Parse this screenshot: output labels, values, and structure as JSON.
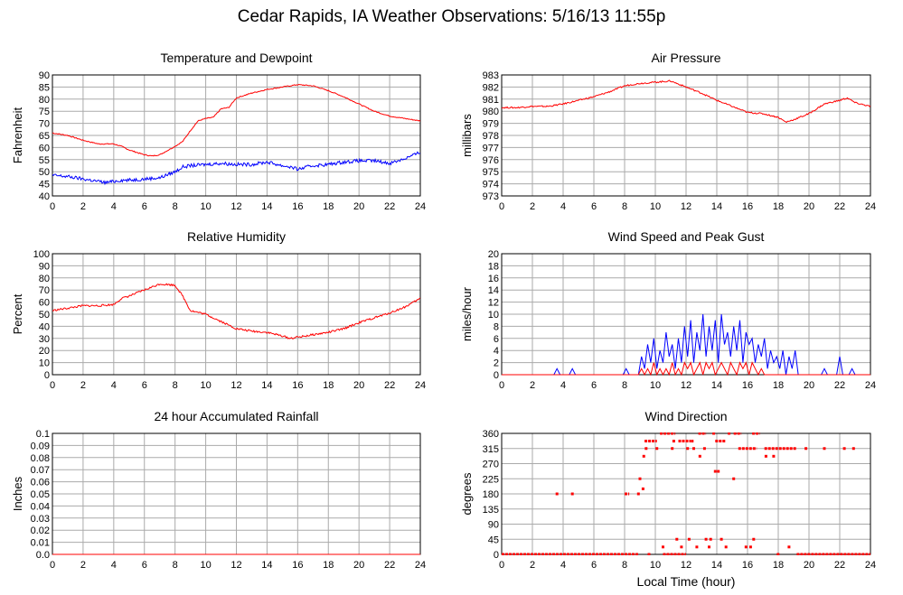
{
  "page": {
    "title": "Cedar Rapids, IA Weather Observations: 5/16/13 11:55p"
  },
  "colors": {
    "red": "#ff0000",
    "blue": "#0000ff",
    "grid": "#aaaaaa",
    "axis": "#000000"
  },
  "chart_data": [
    {
      "id": "temperature-dewpoint",
      "type": "line",
      "title": "Temperature and Dewpoint",
      "xlabel": "",
      "ylabel": "Fahrenheit",
      "xlim": [
        0,
        24
      ],
      "ylim": [
        40,
        90
      ],
      "xticks": [
        0,
        2,
        4,
        6,
        8,
        10,
        12,
        14,
        16,
        18,
        20,
        22,
        24
      ],
      "yticks": [
        40,
        45,
        50,
        55,
        60,
        65,
        70,
        75,
        80,
        85,
        90
      ],
      "grid": true,
      "legend": "none",
      "series": [
        {
          "color": "#ff0000",
          "jitter": 0.2,
          "x": [
            0,
            1,
            2,
            3,
            3.5,
            4,
            4.5,
            5,
            6,
            6.5,
            7,
            8,
            8.5,
            9,
            9.5,
            10,
            10.5,
            11,
            11.5,
            12,
            12.5,
            13,
            14,
            15,
            16,
            17,
            18,
            19,
            20,
            21,
            22,
            23,
            24
          ],
          "y": [
            66,
            65,
            63,
            61.5,
            61.5,
            61.5,
            60.5,
            59,
            57,
            56.5,
            57,
            60.5,
            62.5,
            67,
            71,
            72,
            72.5,
            76,
            76.5,
            80.5,
            81.5,
            82.5,
            84,
            85,
            86,
            85.5,
            83.5,
            81,
            78,
            75,
            73,
            72,
            71
          ]
        },
        {
          "color": "#0000ff",
          "jitter": 0.7,
          "x": [
            0,
            1,
            2,
            3,
            3.5,
            4,
            4.5,
            5,
            6,
            7,
            8,
            8.5,
            9,
            10,
            11,
            12,
            13,
            14,
            15,
            15.5,
            16,
            17,
            18,
            19,
            20,
            21,
            22,
            23,
            24
          ],
          "y": [
            48.5,
            48,
            47,
            46,
            45.5,
            46,
            46.5,
            46.5,
            47,
            47.5,
            50,
            52,
            52.5,
            53,
            53.5,
            53,
            53,
            54,
            52.5,
            52,
            51,
            52.5,
            53,
            54,
            54.5,
            54.5,
            53.5,
            55.5,
            58
          ]
        }
      ]
    },
    {
      "id": "air-pressure",
      "type": "line",
      "title": "Air Pressure",
      "xlabel": "",
      "ylabel": "millibars",
      "xlim": [
        0,
        24
      ],
      "ylim": [
        973,
        983
      ],
      "xticks": [
        0,
        2,
        4,
        6,
        8,
        10,
        12,
        14,
        16,
        18,
        20,
        22,
        24
      ],
      "yticks": [
        973,
        974,
        975,
        976,
        977,
        978,
        979,
        980,
        981,
        982,
        983
      ],
      "grid": true,
      "legend": "none",
      "series": [
        {
          "color": "#ff0000",
          "jitter": 0.06,
          "x": [
            0,
            1,
            2,
            3,
            4,
            5,
            6,
            7,
            8,
            9,
            10,
            11,
            12,
            13,
            14,
            15,
            16,
            17,
            18,
            18.5,
            19,
            20,
            21,
            22,
            22.5,
            23,
            24
          ],
          "y": [
            980.3,
            980.3,
            980.4,
            980.4,
            980.6,
            980.9,
            981.2,
            981.6,
            982.1,
            982.3,
            982.4,
            982.5,
            982.0,
            981.5,
            980.9,
            980.4,
            979.9,
            979.8,
            979.5,
            979.1,
            979.3,
            979.8,
            980.6,
            980.9,
            981.1,
            980.7,
            980.4
          ]
        }
      ]
    },
    {
      "id": "relative-humidity",
      "type": "line",
      "title": "Relative Humidity",
      "xlabel": "",
      "ylabel": "Percent",
      "xlim": [
        0,
        24
      ],
      "ylim": [
        0,
        100
      ],
      "xticks": [
        0,
        2,
        4,
        6,
        8,
        10,
        12,
        14,
        16,
        18,
        20,
        22,
        24
      ],
      "yticks": [
        0,
        10,
        20,
        30,
        40,
        50,
        60,
        70,
        80,
        90,
        100
      ],
      "grid": true,
      "legend": "none",
      "series": [
        {
          "color": "#ff0000",
          "jitter": 0.8,
          "x": [
            0,
            1,
            2,
            3,
            4,
            4.5,
            5,
            6,
            7,
            8,
            8.5,
            9,
            10,
            11,
            12,
            13,
            14,
            15,
            15.5,
            16,
            17,
            18,
            19,
            20,
            21,
            22,
            23,
            24
          ],
          "y": [
            53,
            55,
            57,
            57,
            58,
            63,
            65,
            70,
            75,
            74,
            65,
            53,
            50,
            44,
            38,
            36,
            35,
            32,
            30,
            31,
            33,
            35,
            38,
            43,
            47,
            51,
            56,
            63
          ]
        }
      ]
    },
    {
      "id": "wind-speed-gust",
      "type": "line",
      "title": "Wind Speed and Peak Gust",
      "xlabel": "",
      "ylabel": "miles/hour",
      "xlim": [
        0,
        24
      ],
      "ylim": [
        0,
        20
      ],
      "xticks": [
        0,
        2,
        4,
        6,
        8,
        10,
        12,
        14,
        16,
        18,
        20,
        22,
        24
      ],
      "yticks": [
        0,
        2,
        4,
        6,
        8,
        10,
        12,
        14,
        16,
        18,
        20
      ],
      "grid": true,
      "legend": "none",
      "series": [
        {
          "color": "#0000ff",
          "jitter": 0,
          "x": [
            0,
            3.4,
            3.6,
            3.8,
            4.4,
            4.6,
            4.8,
            7.9,
            8.1,
            8.3,
            8.9,
            9.1,
            9.3,
            9.5,
            9.7,
            9.9,
            10.1,
            10.3,
            10.5,
            10.7,
            10.9,
            11.1,
            11.3,
            11.5,
            11.7,
            11.9,
            12.1,
            12.3,
            12.5,
            12.7,
            12.9,
            13.1,
            13.3,
            13.5,
            13.7,
            13.9,
            14.1,
            14.3,
            14.5,
            14.7,
            14.9,
            15.1,
            15.3,
            15.5,
            15.7,
            15.9,
            16.1,
            16.3,
            16.5,
            16.7,
            16.9,
            17.1,
            17.3,
            17.5,
            17.7,
            17.9,
            18.1,
            18.3,
            18.5,
            18.7,
            18.9,
            19.1,
            19.3,
            19.5,
            20.8,
            21,
            21.2,
            21.8,
            22,
            22.2,
            22.6,
            22.8,
            23,
            24
          ],
          "y": [
            0,
            0,
            1,
            0,
            0,
            1,
            0,
            0,
            1,
            0,
            0,
            3,
            1,
            5,
            2,
            6,
            1,
            4,
            2,
            7,
            3,
            5,
            1,
            6,
            2,
            8,
            3,
            9,
            2,
            7,
            4,
            10,
            3,
            8,
            4,
            9,
            2,
            10,
            5,
            7,
            3,
            8,
            4,
            9,
            2,
            7,
            5,
            6,
            2,
            5,
            3,
            6,
            1,
            4,
            2,
            3,
            1,
            4,
            0,
            3,
            1,
            4,
            0,
            0,
            0,
            1,
            0,
            0,
            3,
            0,
            0,
            1,
            0,
            0
          ]
        },
        {
          "color": "#ff0000",
          "jitter": 0,
          "x": [
            0,
            8.9,
            9.1,
            9.3,
            9.5,
            9.7,
            9.9,
            10.1,
            10.3,
            10.5,
            10.7,
            10.9,
            11.1,
            11.3,
            11.5,
            11.7,
            11.9,
            12.1,
            12.3,
            12.5,
            12.7,
            12.9,
            13.1,
            13.3,
            13.5,
            13.7,
            13.9,
            14.1,
            14.3,
            14.5,
            14.7,
            14.9,
            15.1,
            15.3,
            15.5,
            15.7,
            15.9,
            16.1,
            16.3,
            16.5,
            16.7,
            16.9,
            17.1,
            17.3,
            24
          ],
          "y": [
            0,
            0,
            1,
            0,
            1,
            0,
            2,
            0,
            1,
            0,
            1,
            0,
            2,
            0,
            1,
            0,
            2,
            1,
            2,
            0,
            1,
            2,
            0,
            2,
            1,
            2,
            0,
            1,
            2,
            1,
            0,
            2,
            1,
            0,
            2,
            1,
            2,
            0,
            2,
            1,
            0,
            1,
            0,
            0,
            0
          ]
        }
      ]
    },
    {
      "id": "rainfall",
      "type": "line",
      "title": "24 hour Accumulated Rainfall",
      "xlabel": "",
      "ylabel": "Inches",
      "xlim": [
        0,
        24
      ],
      "ylim": [
        0,
        0.1
      ],
      "xticks": [
        0,
        2,
        4,
        6,
        8,
        10,
        12,
        14,
        16,
        18,
        20,
        22,
        24
      ],
      "yticks": [
        0.0,
        0.01,
        0.02,
        0.03,
        0.04,
        0.05,
        0.06,
        0.07,
        0.08,
        0.09,
        0.1
      ],
      "ytick_labels": [
        "0.0",
        "0.01",
        "0.02",
        "0.03",
        "0.04",
        "0.05",
        "0.06",
        "0.07",
        "0.08",
        "0.09",
        "0.1"
      ],
      "grid": true,
      "legend": "none",
      "series": [
        {
          "color": "#ff0000",
          "jitter": 0,
          "x": [
            0,
            24
          ],
          "y": [
            0,
            0
          ]
        }
      ]
    },
    {
      "id": "wind-direction",
      "type": "scatter",
      "title": "Wind Direction",
      "xlabel": "Local Time (hour)",
      "ylabel": "degrees",
      "xlim": [
        0,
        24
      ],
      "ylim": [
        0,
        360
      ],
      "xticks": [
        0,
        2,
        4,
        6,
        8,
        10,
        12,
        14,
        16,
        18,
        20,
        22,
        24
      ],
      "yticks": [
        0,
        45,
        90,
        135,
        180,
        225,
        270,
        315,
        360
      ],
      "grid": true,
      "legend": "none",
      "series": [
        {
          "color": "#ff0000",
          "ranges": [
            [
              0,
              8.9,
              0
            ],
            [
              9.5,
              9.7,
              0
            ],
            [
              10.5,
              12,
              0
            ],
            [
              17.9,
              18.1,
              0
            ],
            [
              19.2,
              24,
              0
            ],
            [
              9.3,
              10.1,
              337
            ],
            [
              11.5,
              12.3,
              337
            ],
            [
              13.9,
              14.6,
              337
            ],
            [
              10.3,
              11.3,
              360
            ],
            [
              12.8,
              13.3,
              360
            ],
            [
              15.1,
              15.6,
              360
            ],
            [
              16.3,
              16.8,
              360
            ],
            [
              15.4,
              16.6,
              315
            ],
            [
              17.1,
              19.2,
              315
            ],
            [
              8.0,
              8.3,
              180
            ]
          ],
          "x": [
            3.6,
            4.6,
            8.9,
            9.0,
            9.2,
            9.25,
            9.4,
            10.5,
            11.4,
            12.2,
            12.7,
            13.3,
            13.5,
            13.6,
            14.3,
            14.6,
            15.9,
            16.2,
            16.4,
            15.1,
            14.8,
            13.2,
            12.5,
            10.1,
            11.1,
            11.2,
            12.4,
            12.9,
            13.9,
            14.1,
            17.2,
            17.7,
            19.8,
            21.0,
            22.3,
            22.9,
            18.7,
            11.7,
            12.1,
            13.8
          ],
          "y": [
            180,
            180,
            180,
            225,
            195,
            292,
            315,
            22,
            45,
            45,
            22,
            45,
            22,
            45,
            45,
            22,
            22,
            22,
            45,
            225,
            360,
            315,
            315,
            315,
            315,
            337,
            337,
            292,
            247,
            247,
            292,
            292,
            315,
            315,
            315,
            315,
            22,
            22,
            315,
            360
          ]
        }
      ]
    }
  ]
}
